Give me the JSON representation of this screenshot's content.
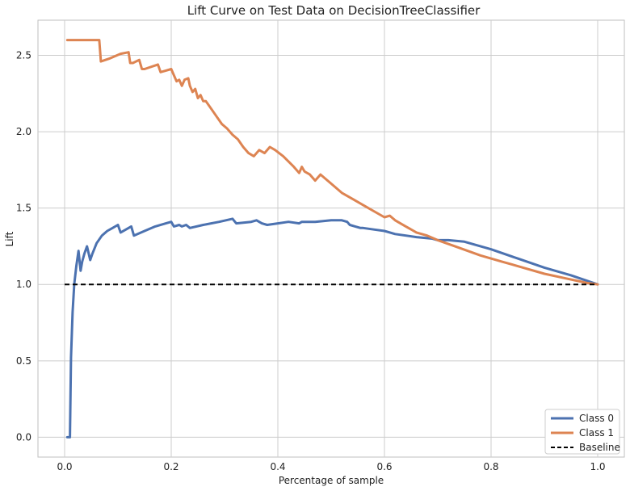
{
  "chart_data": {
    "type": "line",
    "title": "Lift Curve on Test Data on DecisionTreeClassifier",
    "xlabel": "Percentage of sample",
    "ylabel": "Lift",
    "xlim": [
      -0.05,
      1.05
    ],
    "ylim": [
      -0.13,
      2.73
    ],
    "xticks": [
      0.0,
      0.2,
      0.4,
      0.6,
      0.8,
      1.0
    ],
    "xtick_labels": [
      "0.0",
      "0.2",
      "0.4",
      "0.6",
      "0.8",
      "1.0"
    ],
    "yticks": [
      0.0,
      0.5,
      1.0,
      1.5,
      2.0,
      2.5
    ],
    "ytick_labels": [
      "0.0",
      "0.5",
      "1.0",
      "1.5",
      "2.0",
      "2.5"
    ],
    "grid": true,
    "legend_position": "bottom-right",
    "series": [
      {
        "name": "Class 0",
        "color": "#4c72b0",
        "style": "solid",
        "x": [
          0.005,
          0.01,
          0.012,
          0.015,
          0.018,
          0.022,
          0.026,
          0.03,
          0.033,
          0.037,
          0.042,
          0.048,
          0.052,
          0.06,
          0.07,
          0.08,
          0.09,
          0.1,
          0.105,
          0.115,
          0.125,
          0.13,
          0.15,
          0.17,
          0.19,
          0.2,
          0.205,
          0.215,
          0.22,
          0.228,
          0.235,
          0.26,
          0.29,
          0.315,
          0.322,
          0.35,
          0.36,
          0.37,
          0.38,
          0.4,
          0.42,
          0.44,
          0.445,
          0.47,
          0.5,
          0.52,
          0.53,
          0.535,
          0.545,
          0.555,
          0.56,
          0.58,
          0.6,
          0.62,
          0.66,
          0.69,
          0.7,
          0.72,
          0.75,
          0.8,
          0.85,
          0.9,
          0.95,
          1.0
        ],
        "y": [
          0.0,
          0.0,
          0.52,
          0.82,
          1.0,
          1.12,
          1.22,
          1.09,
          1.15,
          1.2,
          1.25,
          1.16,
          1.2,
          1.27,
          1.32,
          1.35,
          1.37,
          1.39,
          1.34,
          1.36,
          1.38,
          1.32,
          1.35,
          1.38,
          1.4,
          1.41,
          1.38,
          1.39,
          1.38,
          1.39,
          1.37,
          1.39,
          1.41,
          1.43,
          1.4,
          1.41,
          1.42,
          1.4,
          1.39,
          1.4,
          1.41,
          1.4,
          1.41,
          1.41,
          1.42,
          1.42,
          1.41,
          1.39,
          1.38,
          1.37,
          1.37,
          1.36,
          1.35,
          1.33,
          1.31,
          1.3,
          1.29,
          1.29,
          1.28,
          1.23,
          1.17,
          1.11,
          1.06,
          1.0
        ]
      },
      {
        "name": "Class 1",
        "color": "#dd8452",
        "style": "solid",
        "x": [
          0.005,
          0.065,
          0.068,
          0.085,
          0.105,
          0.12,
          0.123,
          0.128,
          0.14,
          0.145,
          0.15,
          0.175,
          0.18,
          0.19,
          0.2,
          0.205,
          0.21,
          0.215,
          0.22,
          0.225,
          0.232,
          0.235,
          0.24,
          0.245,
          0.25,
          0.255,
          0.26,
          0.265,
          0.275,
          0.285,
          0.295,
          0.305,
          0.315,
          0.325,
          0.335,
          0.345,
          0.355,
          0.365,
          0.375,
          0.385,
          0.395,
          0.41,
          0.43,
          0.44,
          0.445,
          0.45,
          0.46,
          0.47,
          0.48,
          0.5,
          0.52,
          0.54,
          0.56,
          0.58,
          0.6,
          0.61,
          0.62,
          0.64,
          0.66,
          0.68,
          0.7,
          0.74,
          0.78,
          0.82,
          0.86,
          0.9,
          0.94,
          0.98,
          1.0
        ],
        "y": [
          2.6,
          2.6,
          2.46,
          2.48,
          2.51,
          2.52,
          2.45,
          2.45,
          2.47,
          2.41,
          2.41,
          2.44,
          2.39,
          2.4,
          2.41,
          2.37,
          2.33,
          2.34,
          2.3,
          2.34,
          2.35,
          2.3,
          2.26,
          2.28,
          2.22,
          2.24,
          2.2,
          2.2,
          2.15,
          2.1,
          2.05,
          2.02,
          1.98,
          1.95,
          1.9,
          1.86,
          1.84,
          1.88,
          1.86,
          1.9,
          1.88,
          1.84,
          1.77,
          1.73,
          1.77,
          1.74,
          1.72,
          1.68,
          1.72,
          1.66,
          1.6,
          1.56,
          1.52,
          1.48,
          1.44,
          1.45,
          1.42,
          1.38,
          1.34,
          1.32,
          1.29,
          1.24,
          1.19,
          1.15,
          1.11,
          1.07,
          1.04,
          1.01,
          1.0
        ]
      },
      {
        "name": "Baseline",
        "color": "#000000",
        "style": "dashed",
        "x": [
          0.0,
          1.0
        ],
        "y": [
          1.0,
          1.0
        ]
      }
    ]
  }
}
